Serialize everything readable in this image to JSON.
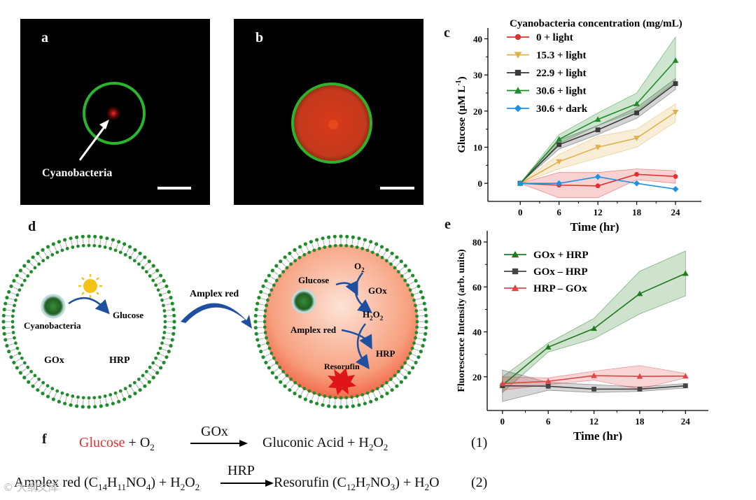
{
  "panels": {
    "a": "a",
    "b": "b",
    "c": "c",
    "d": "d",
    "e": "e",
    "f": "f"
  },
  "micrograph_a": {
    "label": "Cyanobacteria"
  },
  "diagram_d": {
    "left": {
      "cell": "Cyanobacteria",
      "product": "Glucose",
      "gox": "GOx",
      "hrp": "HRP"
    },
    "arrow_label": "Amplex red",
    "right": {
      "glucose": "Glucose",
      "o2": "O",
      "o2_sub": "2",
      "gox": "GOx",
      "h2o2_a": "H",
      "h2o2_sub1": "2",
      "h2o2_b": "O",
      "h2o2_sub2": "2",
      "amplex": "Amplex red",
      "hrp": "HRP",
      "resorufin": "Resorufin"
    }
  },
  "chart_data": [
    {
      "id": "c",
      "type": "line",
      "title": "Cyanobacteria concentration (mg/mL)",
      "xlabel": "Time (hr)",
      "ylabel": "Glucose (μM L",
      "ylabel_sup": "-1",
      "ylabel_end": ")",
      "x": [
        0,
        6,
        12,
        18,
        24
      ],
      "xlim": [
        -5,
        28
      ],
      "ylim": [
        -5,
        43
      ],
      "xticks": [
        0,
        6,
        12,
        18,
        24
      ],
      "yticks": [
        0,
        10,
        20,
        30,
        40
      ],
      "series": [
        {
          "name": "0 + light",
          "color": "#e0312f",
          "marker": "circle",
          "values": [
            0,
            -0.5,
            -0.7,
            2.5,
            1.9
          ],
          "lower": [
            0,
            -4,
            -4,
            1,
            0
          ],
          "upper": [
            0,
            3,
            3,
            4,
            3.5
          ]
        },
        {
          "name": "15.3 + light",
          "color": "#e0b04a",
          "marker": "triangle-down",
          "values": [
            0,
            6,
            10,
            12.5,
            19.7
          ],
          "lower": [
            0,
            4,
            7,
            10,
            17
          ],
          "upper": [
            0,
            8,
            13,
            15,
            22
          ]
        },
        {
          "name": "22.9 + light",
          "color": "#3a3a3a",
          "marker": "square",
          "values": [
            0,
            10.7,
            14.8,
            19.5,
            27.6
          ],
          "lower": [
            0,
            9.5,
            13.5,
            18,
            26
          ],
          "upper": [
            0,
            12,
            16,
            21,
            29
          ]
        },
        {
          "name": "30.6 + light",
          "color": "#1f8a2a",
          "marker": "triangle-up",
          "values": [
            0,
            12.2,
            17.7,
            22,
            34
          ],
          "lower": [
            0,
            11,
            16,
            20,
            28
          ],
          "upper": [
            0,
            13.5,
            19.5,
            25,
            40.5
          ]
        },
        {
          "name": "30.6 + dark",
          "color": "#1e90e8",
          "marker": "diamond",
          "values": [
            0,
            0,
            1.8,
            0,
            -1.6
          ],
          "lower": [
            0,
            0,
            1.8,
            0,
            -1.6
          ],
          "upper": [
            0,
            0,
            1.8,
            0,
            -1.6
          ]
        }
      ]
    },
    {
      "id": "e",
      "type": "line",
      "title": "",
      "xlabel": "Time (hr)",
      "ylabel": "Fluorescence Intensity (arb. units)",
      "x": [
        0,
        6,
        12,
        18,
        24
      ],
      "xlim": [
        -2,
        27
      ],
      "ylim": [
        5,
        85
      ],
      "xticks": [
        0,
        6,
        12,
        18,
        24
      ],
      "yticks": [
        20,
        40,
        60,
        80
      ],
      "series": [
        {
          "name": "GOx + HRP",
          "color": "#1f7a1f",
          "marker": "triangle-up",
          "values": [
            16.3,
            33.2,
            41.5,
            57,
            66
          ],
          "lower": [
            13,
            31,
            37,
            48,
            56
          ],
          "upper": [
            20,
            35,
            46,
            67,
            76
          ]
        },
        {
          "name": "GOx – HRP",
          "color": "#444444",
          "marker": "square",
          "values": [
            16,
            15.8,
            14.5,
            14.5,
            16
          ],
          "lower": [
            9,
            14,
            13,
            13.5,
            15
          ],
          "upper": [
            23,
            17.5,
            16.5,
            15.5,
            17
          ]
        },
        {
          "name": "HRP – GOx",
          "color": "#e04545",
          "marker": "triangle-up",
          "values": [
            17,
            18,
            20.5,
            20.2,
            20.3
          ],
          "lower": [
            14,
            16.5,
            18.5,
            14.5,
            19.5
          ],
          "upper": [
            20,
            19.5,
            22.5,
            25,
            21.5
          ]
        }
      ]
    }
  ],
  "equations": {
    "eq1": {
      "glucose": "Glucose",
      "plus1": " + O",
      "o2sub": "2",
      "enzyme": "GOx",
      "rhs_a": "Gluconic Acid + H",
      "rhs_sub1": "2",
      "rhs_b": "O",
      "rhs_sub2": "2",
      "num": "(1)"
    },
    "eq2": {
      "lhs_a": "Amplex red (C",
      "s14": "14",
      "lhs_b": "H",
      "s11": "11",
      "lhs_c": "NO",
      "s4": "4",
      "lhs_d": ") + H",
      "s2a": "2",
      "lhs_e": "O",
      "s2b": "2",
      "enzyme": "HRP",
      "rhs_a": "Resorufin (C",
      "s12": "12",
      "rhs_b": "H",
      "s7": "7",
      "rhs_c": "NO",
      "s3": "3",
      "rhs_d": ") + H",
      "s2c": "2",
      "rhs_e": "O",
      "num": "(2)"
    }
  },
  "watermark": "© 大纲文库"
}
